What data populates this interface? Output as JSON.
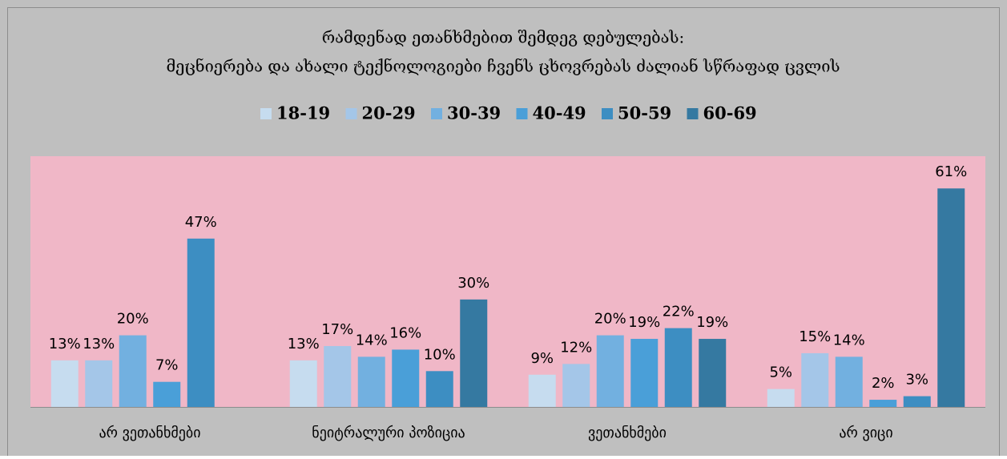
{
  "chart_data": {
    "type": "bar",
    "title": [
      "რამდენად ეთანხმებით შემდეგ დებულებას:",
      "მეცნიერება და ახალი ტექნოლოგიები ჩვენს ცხოვრებას ძალიან სწრაფად ცვლის"
    ],
    "categories": [
      "არ ვეთანხმები",
      "ნეიტრალური პოზიცია",
      "ვეთანხმები",
      "არ ვიცი"
    ],
    "series": [
      {
        "name": "18-19",
        "color": "#c6dcef",
        "values": [
          13,
          13,
          9,
          5
        ],
        "value_labels": [
          "13%",
          "13%",
          "9%",
          "5%"
        ]
      },
      {
        "name": "20-29",
        "color": "#a4c6e8",
        "values": [
          13,
          17,
          12,
          15
        ],
        "value_labels": [
          "13%",
          "17%",
          "12%",
          "15%"
        ]
      },
      {
        "name": "30-39",
        "color": "#72b0e0",
        "values": [
          20,
          14,
          20,
          14
        ],
        "value_labels": [
          "20%",
          "14%",
          "20%",
          "14%"
        ]
      },
      {
        "name": "40-49",
        "color": "#4a9fd8",
        "values": [
          7,
          16,
          19,
          2
        ],
        "value_labels": [
          "7%",
          "16%",
          "19%",
          "2%"
        ]
      },
      {
        "name": "50-59",
        "color": "#3d8ec2",
        "values": [
          47,
          10,
          22,
          3
        ],
        "value_labels": [
          "47%",
          "10%",
          "22%",
          "3%"
        ]
      },
      {
        "name": "60-69",
        "color": "#3579a1",
        "values": [
          null,
          30,
          19,
          61
        ],
        "value_labels": [
          null,
          "30%",
          "19%",
          "61%"
        ]
      }
    ],
    "ylim": [
      0,
      70
    ],
    "legend": "top",
    "plot_background": "#f0b7c7",
    "background": "#bfbfbf"
  }
}
